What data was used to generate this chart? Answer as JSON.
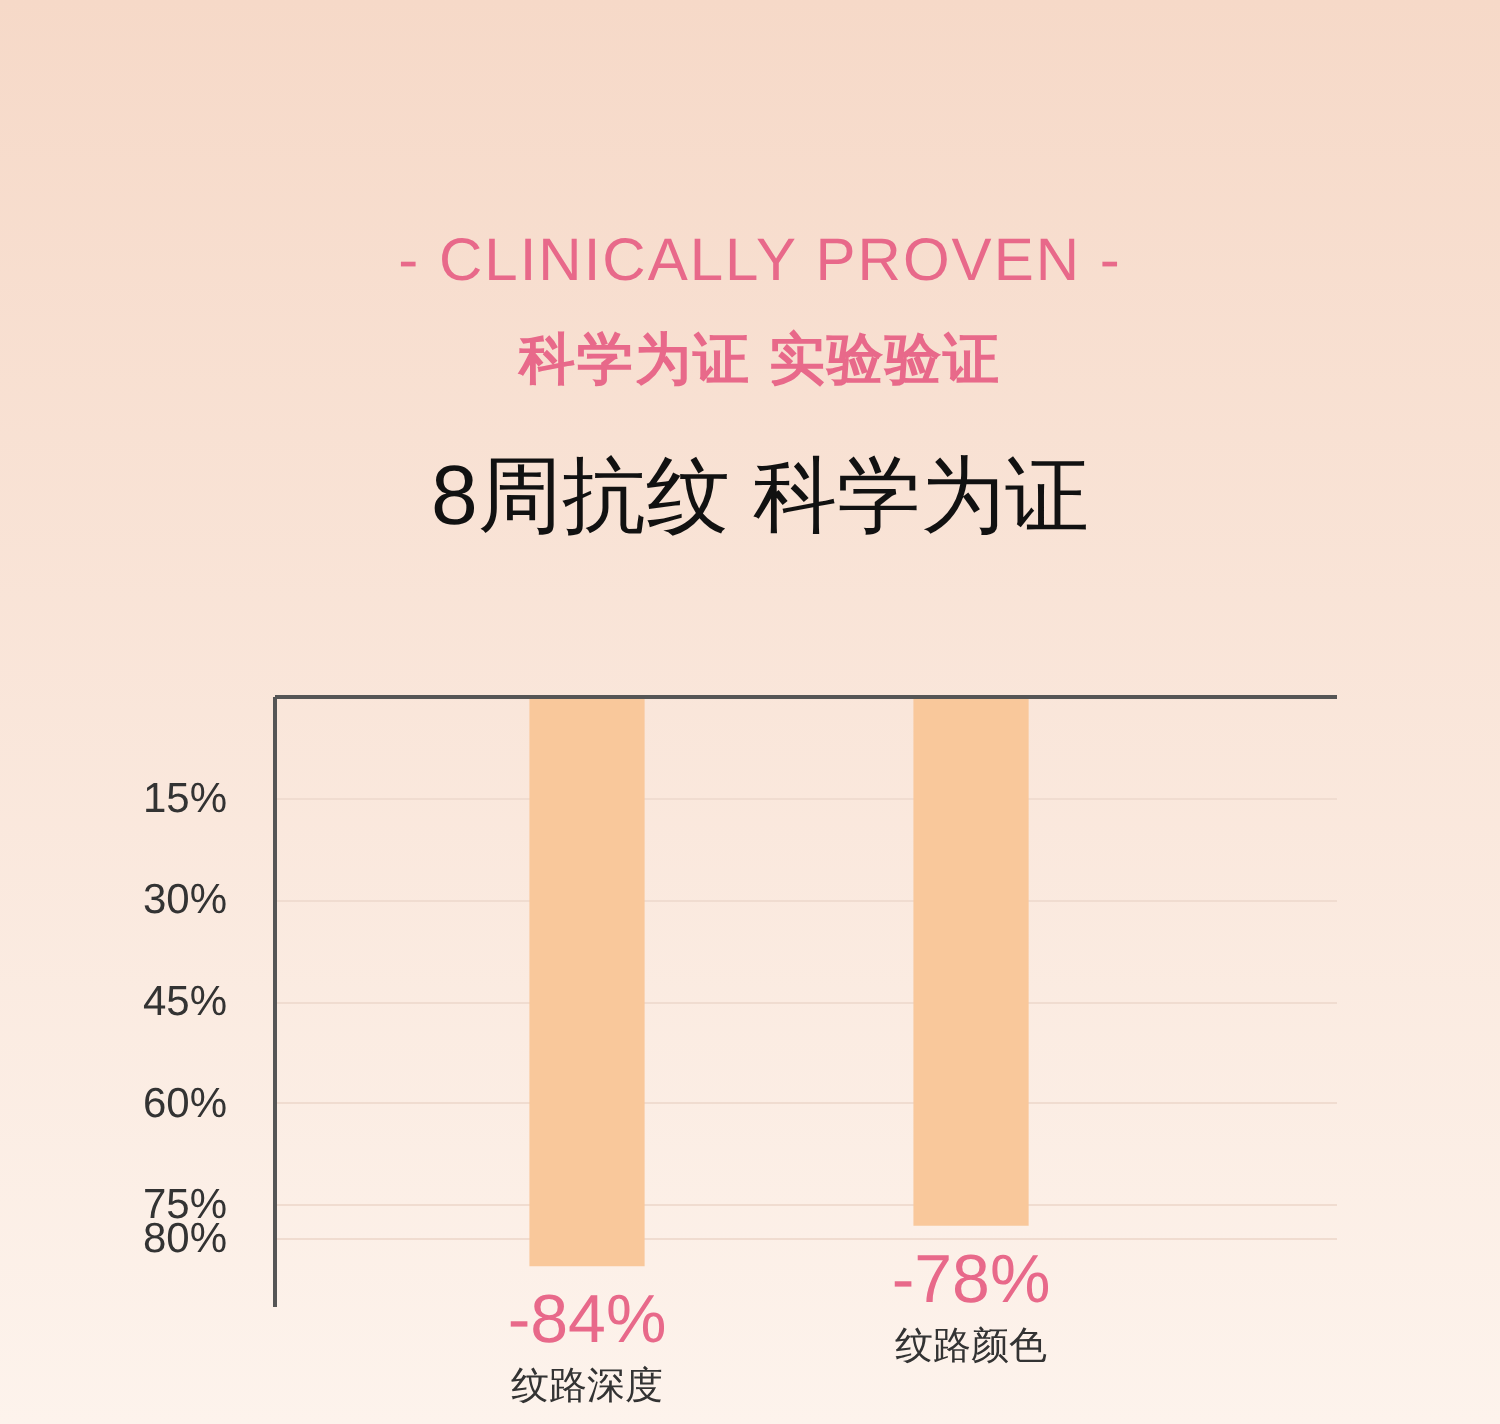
{
  "chart_data": {
    "type": "bar",
    "title": "8周抗纹 科学为证",
    "annotations": [
      "- CLINICALLY PROVEN -",
      "科学为证 实验验证"
    ],
    "categories": [
      "纹路深度",
      "纹路颜色"
    ],
    "values": [
      -84,
      -78
    ],
    "color": "#f9c89b",
    "value_labels": [
      "-84%",
      "-78%"
    ],
    "ylim": [
      -90,
      0
    ],
    "yticks": [
      {
        "value": -15,
        "label": "15%"
      },
      {
        "value": -30,
        "label": "30%"
      },
      {
        "value": -45,
        "label": "45%"
      },
      {
        "value": -60,
        "label": "60%"
      },
      {
        "value": -75,
        "label": "75%"
      },
      {
        "value": -80,
        "label": "80%"
      }
    ],
    "grid": "y"
  }
}
